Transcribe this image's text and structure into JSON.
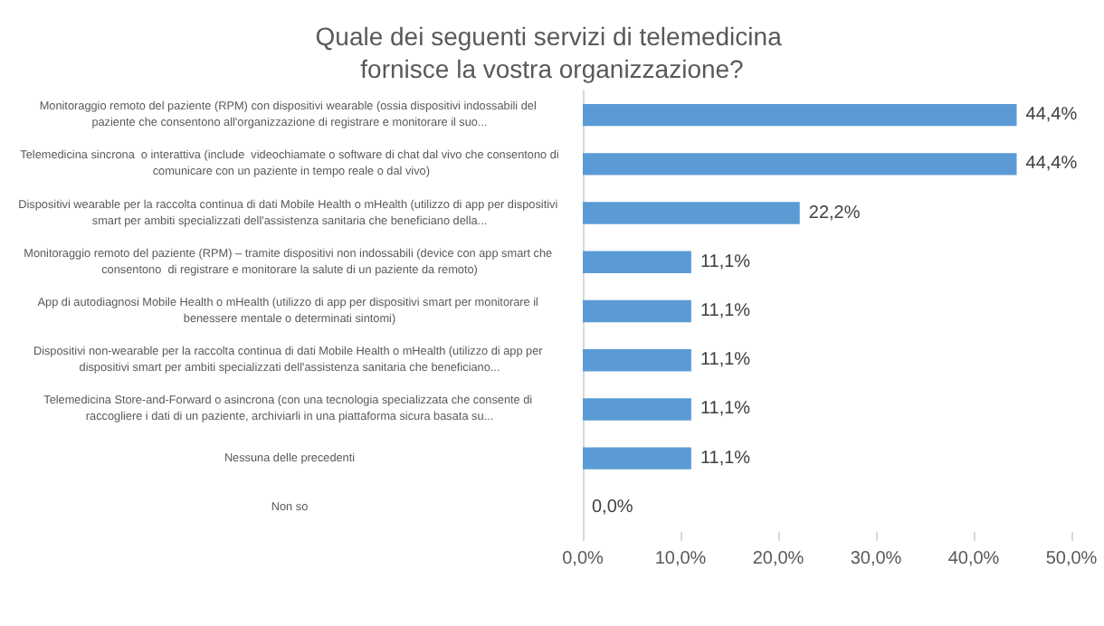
{
  "chart_data": {
    "type": "bar",
    "orientation": "horizontal",
    "title": "Quale dei seguenti servizi di telemedicina fornisce la vostra organizzazione?",
    "categories": [
      "Monitoraggio remoto del paziente (RPM) con dispositivi wearable (ossia dispositivi indossabili del paziente che consentono all'organizzazione di registrare e monitorare il suo...",
      "Telemedicina sincrona  o interattiva (include  videochiamate o software di chat dal vivo che consentono di comunicare con un paziente in tempo reale o dal vivo)",
      "Dispositivi wearable per la raccolta continua di dati Mobile Health o mHealth (utilizzo di app per dispositivi smart per ambiti specializzati dell'assistenza sanitaria che beneficiano della...",
      "Monitoraggio remoto del paziente (RPM) – tramite dispositivi non indossabili (device con app smart che consentono  di registrare e monitorare la salute di un paziente da remoto)",
      "App di autodiagnosi Mobile Health o mHealth (utilizzo di app per dispositivi smart per monitorare il benessere mentale o determinati sintomi)",
      "Dispositivi non-wearable per la raccolta continua di dati Mobile Health o mHealth (utilizzo di app per dispositivi smart per ambiti specializzati dell'assistenza sanitaria che beneficiano...",
      "Telemedicina Store-and-Forward o asincrona (con una tecnologia specializzata che consente di raccogliere i dati di un paziente, archiviarli in una piattaforma sicura basata su...",
      "Nessuna delle precedenti",
      "Non so"
    ],
    "values": [
      44.4,
      44.4,
      22.2,
      11.1,
      11.1,
      11.1,
      11.1,
      11.1,
      0.0
    ],
    "value_labels": [
      "44,4%",
      "44,4%",
      "22,2%",
      "11,1%",
      "11,1%",
      "11,1%",
      "11,1%",
      "11,1%",
      "0,0%"
    ],
    "color": "#5b9bd5",
    "xlim": [
      0,
      50
    ],
    "xticks": [
      {
        "value": 0,
        "label": "0,0%"
      },
      {
        "value": 10,
        "label": "10,0%"
      },
      {
        "value": 20,
        "label": "20,0%"
      },
      {
        "value": 30,
        "label": "30,0%"
      },
      {
        "value": 40,
        "label": "40,0%"
      },
      {
        "value": 50,
        "label": "50,0%"
      }
    ],
    "grid": false
  }
}
